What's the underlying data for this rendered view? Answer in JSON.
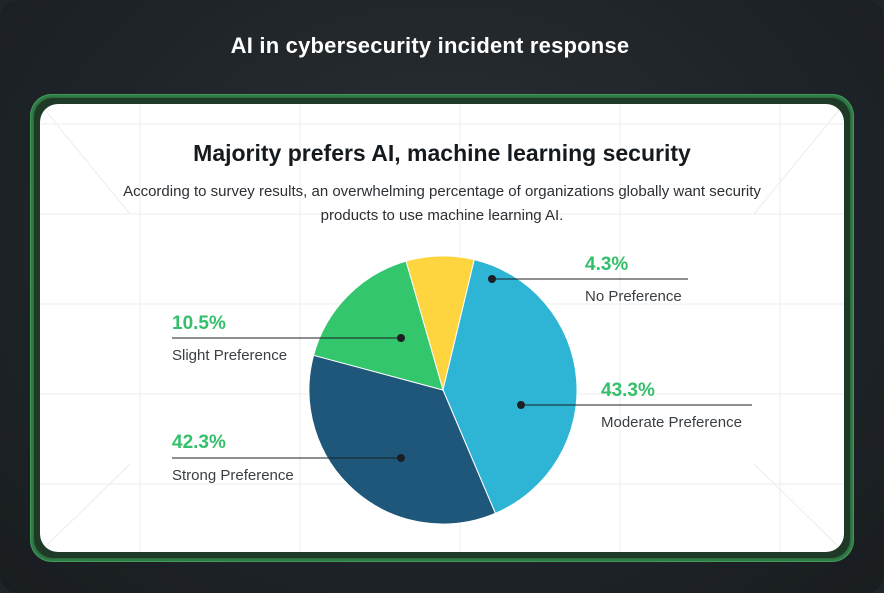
{
  "header": {
    "title": "AI in cybersecurity incident response"
  },
  "chart_data": {
    "type": "pie",
    "title": "Majority prefers AI, machine learning security",
    "subtitle": "According to survey results, an overwhelming percentage of organizations globally want security products to use machine learning AI.",
    "slices": [
      {
        "label": "No Preference",
        "value": 4.3,
        "display": "4.3%",
        "color": "#fed53f"
      },
      {
        "label": "Moderate Preference",
        "value": 43.3,
        "display": "43.3%",
        "color": "#2eb4d4"
      },
      {
        "label": "Strong Preference",
        "value": 42.3,
        "display": "42.3%",
        "color": "#1f577b"
      },
      {
        "label": "Slight Preference",
        "value": 10.5,
        "display": "10.5%",
        "color": "#34c66c"
      }
    ]
  }
}
